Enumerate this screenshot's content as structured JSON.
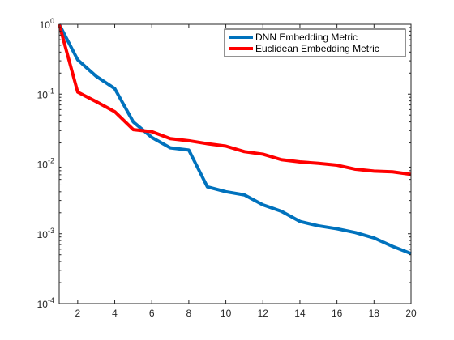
{
  "chart_data": {
    "type": "line",
    "title": "",
    "xlabel": "",
    "ylabel": "",
    "xlim": [
      1,
      20
    ],
    "ylim": [
      0.0001,
      1
    ],
    "yscale": "log",
    "grid": false,
    "legend_position": "top-right",
    "x_ticks": [
      2,
      4,
      6,
      8,
      10,
      12,
      14,
      16,
      18,
      20
    ],
    "y_ticks": [
      {
        "value": 0.0001,
        "base": "10",
        "exp": "-4"
      },
      {
        "value": 0.001,
        "base": "10",
        "exp": "-3"
      },
      {
        "value": 0.01,
        "base": "10",
        "exp": "-2"
      },
      {
        "value": 0.1,
        "base": "10",
        "exp": "-1"
      },
      {
        "value": 1,
        "base": "10",
        "exp": "0"
      }
    ],
    "x": [
      1,
      2,
      3,
      4,
      5,
      6,
      7,
      8,
      9,
      10,
      11,
      12,
      13,
      14,
      15,
      16,
      17,
      18,
      19,
      20
    ],
    "series": [
      {
        "name": "DNN Embedding Metric",
        "color": "#0072bd",
        "values": [
          1.0,
          0.31,
          0.18,
          0.12,
          0.04,
          0.024,
          0.017,
          0.0158,
          0.0047,
          0.004,
          0.0036,
          0.0026,
          0.0021,
          0.0015,
          0.0013,
          0.00118,
          0.00104,
          0.00087,
          0.00066,
          0.00052
        ]
      },
      {
        "name": "Euclidean Embedding Metric",
        "color": "#ff0000",
        "values": [
          1.0,
          0.107,
          0.078,
          0.056,
          0.031,
          0.029,
          0.023,
          0.0215,
          0.0195,
          0.018,
          0.015,
          0.0138,
          0.0115,
          0.0107,
          0.0102,
          0.0096,
          0.0084,
          0.0079,
          0.0077,
          0.0071
        ]
      }
    ]
  }
}
